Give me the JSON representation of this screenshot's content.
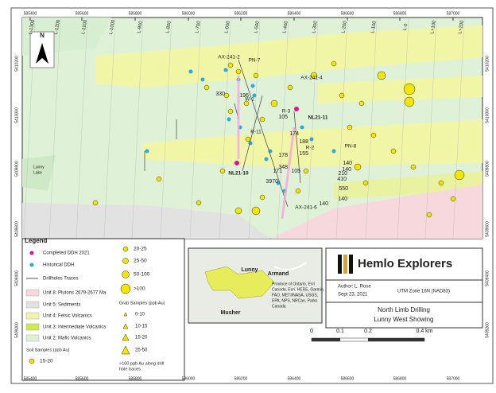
{
  "grid": {
    "eastings": [
      585400,
      585600,
      585800,
      586000,
      586200,
      586400,
      586600,
      586800,
      587000
    ],
    "northings": [
      5410200,
      5410000,
      5409800,
      5409600,
      5409400,
      5409200
    ]
  },
  "lines": [
    "L-1300",
    "L-1200",
    "L-1100",
    "L-1000",
    "L-900",
    "L-800",
    "L-700",
    "L-600",
    "L-500",
    "L-400",
    "L-300",
    "L-200",
    "L-100",
    "L-0",
    "L+100",
    "L+200"
  ],
  "map": {
    "north": "N",
    "lake": [
      "Lunny",
      "Lake"
    ],
    "holes": [
      "AX-241-2",
      "PN-7",
      "AX-241-4",
      "W-1",
      "R-3",
      "NL21-11",
      "R-11",
      "R-2",
      "PN-8",
      "NL21-10",
      "AX-241-6"
    ],
    "assays": [
      330,
      196,
      105,
      174,
      188,
      155,
      178,
      348,
      171,
      105,
      3970,
      140,
      210,
      140,
      410,
      550,
      140,
      140
    ]
  },
  "legend": {
    "title": "Legend",
    "items": [
      "Completed DDH 2021",
      "Historical DDH",
      "Drillholes Traces",
      "Unit 8: Plutons 2679-2677 Ma",
      "Unit 5: Sediments",
      "Unit 4: Felsic Volcanics",
      "Unit 3: Intermediate Volcanics",
      "Unit 2: Mafic Volcanics"
    ],
    "soil_title": "Soil Samples (ppb Au)",
    "soil": [
      "15-20",
      "20-25",
      "25-50",
      "50-100",
      ">100"
    ],
    "grab_title": "Grab Samples (ppb Au)",
    "grab": [
      "0-10",
      "10-15",
      "15-20",
      "25-50"
    ],
    "note": [
      ">100 ppb Au along drill",
      "hole traces"
    ]
  },
  "inset": {
    "labels": [
      "Lunny",
      "Armand",
      "Musher"
    ],
    "attribution": [
      "Province of Ontario, Esri",
      "Canada, Esri, HERE, Garmin,",
      "FAO, METI/NASA, USGS,",
      "EPA, NPS, NRCan, Parks",
      "Canada"
    ]
  },
  "titleblock": {
    "company": "Hemlo Explorers",
    "author": "Author: L. Rose",
    "date": "Sept 23, 2021",
    "projection": "UTM Zone 16N (NAD83)",
    "title": [
      "North Limb Drilling",
      "Lunny West Showing"
    ]
  },
  "scale": {
    "ticks": [
      0,
      0.1,
      0.2,
      "0.4 km"
    ]
  }
}
